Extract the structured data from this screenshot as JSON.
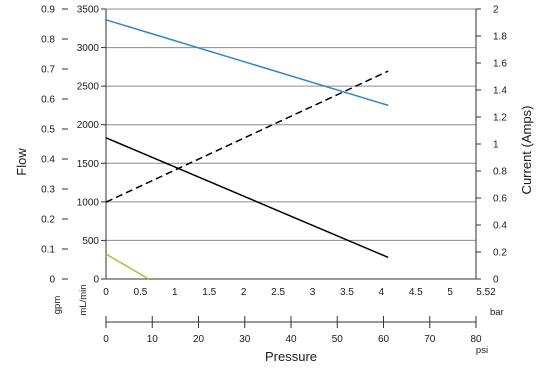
{
  "chart_data": {
    "type": "line",
    "xlabel": "Pressure",
    "ylabel_left": "Flow",
    "ylabel_right": "Current (Amps)",
    "units": {
      "gpm": "gpm",
      "ml_min": "mL/min",
      "bar": "bar",
      "psi": "psi"
    },
    "bar_axis": {
      "ticks": [
        "0",
        "0.5",
        "1",
        "1.5",
        "2",
        "2.5",
        "3",
        "3.5",
        "4",
        "4.5",
        "5",
        "5.52"
      ],
      "range": [
        0,
        5.52
      ]
    },
    "psi_axis": {
      "ticks": [
        "0",
        "10",
        "20",
        "30",
        "40",
        "50",
        "60",
        "70",
        "80"
      ],
      "range": [
        0,
        80
      ]
    },
    "gpm_axis": {
      "ticks": [
        "0",
        "0.1",
        "0.2",
        "0.3",
        "0.4",
        "0.5",
        "0.6",
        "0.7",
        "0.8",
        "0.9"
      ],
      "range": [
        0,
        0.9
      ]
    },
    "mlmin_axis": {
      "ticks": [
        "0",
        "500",
        "1000",
        "1500",
        "2000",
        "2500",
        "3000",
        "3500"
      ],
      "range": [
        0,
        3500
      ]
    },
    "amps_axis": {
      "ticks": [
        "0",
        "0.2",
        "0.4",
        "0.6",
        "0.8",
        "1",
        "1.2",
        "1.4",
        "1.6",
        "1.8",
        "2"
      ],
      "range": [
        0,
        2
      ]
    },
    "grid": true,
    "series": [
      {
        "axis": "mL/min",
        "color": "#2f86c8",
        "style": "solid",
        "points": [
          [
            0,
            3360
          ],
          [
            4.1,
            2250
          ]
        ]
      },
      {
        "axis": "mL/min",
        "color": "#000000",
        "style": "solid",
        "points": [
          [
            0,
            1830
          ],
          [
            4.1,
            280
          ]
        ]
      },
      {
        "axis": "Amps",
        "color": "#000000",
        "style": "dashed",
        "points": [
          [
            0,
            0.57
          ],
          [
            4.1,
            1.54
          ]
        ]
      },
      {
        "axis": "gpm",
        "color": "#a8c23a",
        "style": "solid",
        "points": [
          [
            0,
            0.0833
          ],
          [
            0.62,
            0
          ]
        ]
      }
    ]
  }
}
